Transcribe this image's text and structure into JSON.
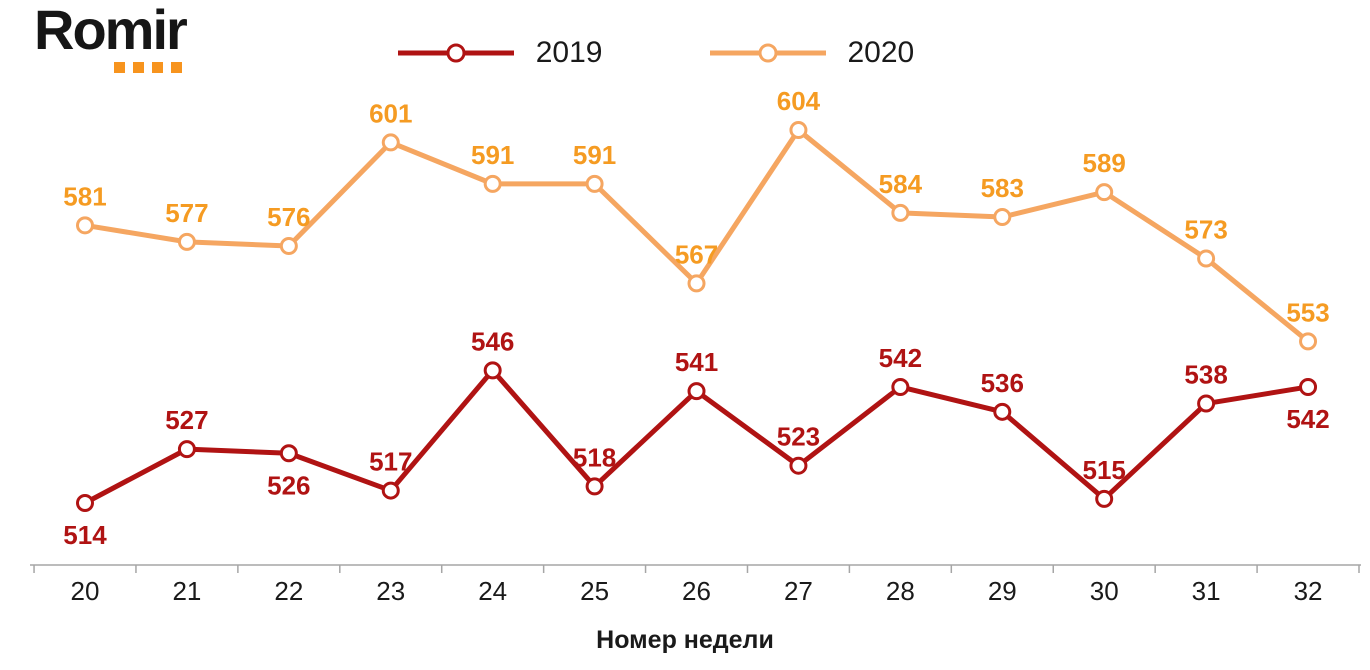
{
  "logo": {
    "text": "Romir",
    "dot_color": "#F7941E",
    "dots_count": 4
  },
  "legend_items": [
    {
      "label": "2019",
      "color": "#B01313"
    },
    {
      "label": "2020",
      "color": "#F5A661"
    }
  ],
  "chart_data": {
    "type": "line",
    "x": [
      20,
      21,
      22,
      23,
      24,
      25,
      26,
      27,
      28,
      29,
      30,
      31,
      32
    ],
    "xlabel": "Номер недели",
    "ylim": [
      505,
      615
    ],
    "grid": false,
    "legend_position": "top-center",
    "series": [
      {
        "name": "2019",
        "color": "#B01313",
        "label_color": "#B01313",
        "values": [
          514,
          527,
          526,
          517,
          546,
          518,
          541,
          523,
          542,
          536,
          515,
          538,
          542
        ],
        "label_pos": [
          "below",
          "above",
          "below",
          "above",
          "above",
          "above",
          "above",
          "above",
          "above",
          "above",
          "above",
          "above",
          "below"
        ]
      },
      {
        "name": "2020",
        "color": "#F5A661",
        "label_color": "#F59B22",
        "values": [
          581,
          577,
          576,
          601,
          591,
          591,
          567,
          604,
          584,
          583,
          589,
          573,
          553
        ],
        "label_pos": [
          "above",
          "above",
          "above",
          "above",
          "above",
          "above",
          "above",
          "above",
          "above",
          "above",
          "above",
          "above",
          "above"
        ]
      }
    ]
  },
  "axis": {
    "tick_color": "#a6a6a6",
    "tick_label_color": "#1a1a1a"
  }
}
